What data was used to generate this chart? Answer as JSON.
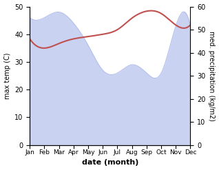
{
  "months": [
    "Jan",
    "Feb",
    "Mar",
    "Apr",
    "May",
    "Jun",
    "Jul",
    "Aug",
    "Sep",
    "Oct",
    "Nov",
    "Dec"
  ],
  "max_temp": [
    46,
    46,
    48,
    44,
    36,
    27,
    26,
    29,
    26,
    26,
    43,
    43
  ],
  "precipitation": [
    46,
    42,
    44,
    46,
    47,
    48,
    50,
    55,
    58,
    57,
    52,
    52
  ],
  "temp_fill_color": "#b3bfec",
  "precip_color": "#c0504d",
  "xlabel": "date (month)",
  "ylabel_left": "max temp (C)",
  "ylabel_right": "med. precipitation (kg/m2)",
  "ylim_left": [
    0,
    50
  ],
  "ylim_right": [
    0,
    60
  ],
  "yticks_left": [
    0,
    10,
    20,
    30,
    40,
    50
  ],
  "yticks_right": [
    0,
    10,
    20,
    30,
    40,
    50,
    60
  ],
  "background_color": "#ffffff"
}
